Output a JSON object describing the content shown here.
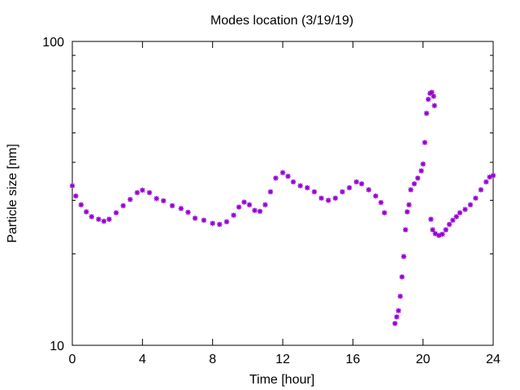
{
  "chart_data": {
    "type": "scatter",
    "title": "Modes location (3/19/19)",
    "xlabel": "Time [hour]",
    "ylabel": "Particle size [nm]",
    "xlim": [
      0,
      24
    ],
    "ylim": [
      10,
      100
    ],
    "yscale": "log",
    "grid": false,
    "legend": "none",
    "marker": "asterisk",
    "color": "#9400d3",
    "x_ticks": [
      "0",
      "4",
      "8",
      "12",
      "16",
      "20",
      "24"
    ],
    "y_ticks": [
      "10",
      "100"
    ],
    "series": [
      {
        "points": [
          [
            0.0,
            33.5
          ],
          [
            0.2,
            31.0
          ],
          [
            0.5,
            29.0
          ],
          [
            0.8,
            27.5
          ],
          [
            1.1,
            26.5
          ],
          [
            1.5,
            26.0
          ],
          [
            1.8,
            25.6
          ],
          [
            2.1,
            26.0
          ],
          [
            2.5,
            27.3
          ],
          [
            2.9,
            28.8
          ],
          [
            3.3,
            30.2
          ],
          [
            3.7,
            31.8
          ],
          [
            4.0,
            32.4
          ],
          [
            4.4,
            31.8
          ],
          [
            4.8,
            30.4
          ],
          [
            5.2,
            29.9
          ],
          [
            5.7,
            28.8
          ],
          [
            6.2,
            28.2
          ],
          [
            6.6,
            27.4
          ],
          [
            7.0,
            26.2
          ],
          [
            7.5,
            25.8
          ],
          [
            8.0,
            25.2
          ],
          [
            8.4,
            25.0
          ],
          [
            8.8,
            25.5
          ],
          [
            9.2,
            26.8
          ],
          [
            9.5,
            28.5
          ],
          [
            9.8,
            29.6
          ],
          [
            10.1,
            29.0
          ],
          [
            10.4,
            27.8
          ],
          [
            10.7,
            27.6
          ],
          [
            11.0,
            29.0
          ],
          [
            11.3,
            32.0
          ],
          [
            11.6,
            35.5
          ],
          [
            12.0,
            37.0
          ],
          [
            12.3,
            36.0
          ],
          [
            12.6,
            34.5
          ],
          [
            13.0,
            33.5
          ],
          [
            13.4,
            33.0
          ],
          [
            13.8,
            32.0
          ],
          [
            14.2,
            30.5
          ],
          [
            14.6,
            30.0
          ],
          [
            15.0,
            30.5
          ],
          [
            15.4,
            32.0
          ],
          [
            15.8,
            33.0
          ],
          [
            16.2,
            34.5
          ],
          [
            16.5,
            34.0
          ],
          [
            16.9,
            32.5
          ],
          [
            17.3,
            31.0
          ],
          [
            17.6,
            29.5
          ],
          [
            17.8,
            27.3
          ],
          [
            18.4,
            11.8
          ],
          [
            18.5,
            12.4
          ],
          [
            18.6,
            13.0
          ],
          [
            18.7,
            14.5
          ],
          [
            18.8,
            16.8
          ],
          [
            18.9,
            19.6
          ],
          [
            19.0,
            24.0
          ],
          [
            19.1,
            27.5
          ],
          [
            19.2,
            29.0
          ],
          [
            19.3,
            32.5
          ],
          [
            19.5,
            34.0
          ],
          [
            19.7,
            35.5
          ],
          [
            19.9,
            37.5
          ],
          [
            20.0,
            39.5
          ],
          [
            20.1,
            46.5
          ],
          [
            20.2,
            58.0
          ],
          [
            20.3,
            64.5
          ],
          [
            20.4,
            67.5
          ],
          [
            20.5,
            68.0
          ],
          [
            20.6,
            66.0
          ],
          [
            20.65,
            61.5
          ],
          [
            20.45,
            26.0
          ],
          [
            20.55,
            24.0
          ],
          [
            20.7,
            23.3
          ],
          [
            20.9,
            23.0
          ],
          [
            21.1,
            23.2
          ],
          [
            21.3,
            24.0
          ],
          [
            21.5,
            25.0
          ],
          [
            21.7,
            25.8
          ],
          [
            21.9,
            26.5
          ],
          [
            22.1,
            27.3
          ],
          [
            22.4,
            28.0
          ],
          [
            22.7,
            29.0
          ],
          [
            23.0,
            30.5
          ],
          [
            23.3,
            32.5
          ],
          [
            23.6,
            34.5
          ],
          [
            23.8,
            35.8
          ],
          [
            24.0,
            36.2
          ]
        ]
      }
    ]
  }
}
